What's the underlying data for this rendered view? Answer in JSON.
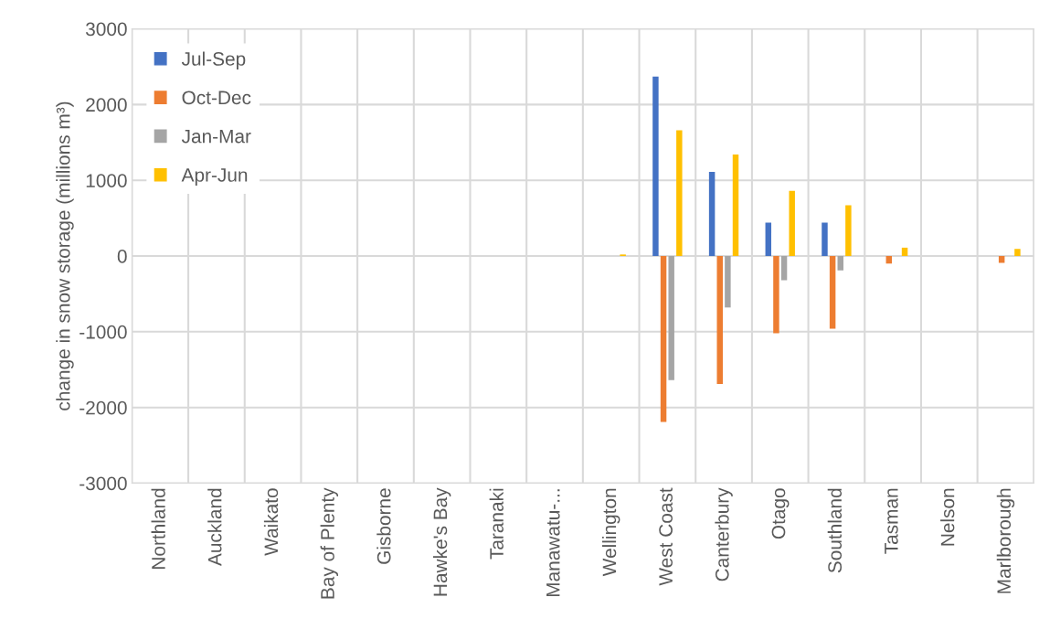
{
  "chart_data": {
    "type": "bar",
    "ylabel": "change in snow storage (millions m³)",
    "categories": [
      "Northland",
      "Auckland",
      "Waikato",
      "Bay of Plenty",
      "Gisborne",
      "Hawke's Bay",
      "Taranaki",
      "Manawatu-...",
      "Wellington",
      "West Coast",
      "Canterbury",
      "Otago",
      "Southland",
      "Tasman",
      "Nelson",
      "Marlborough"
    ],
    "series": [
      {
        "name": "Jul-Sep",
        "color": "#4472c4",
        "values": [
          0,
          0,
          0,
          0,
          0,
          0,
          0,
          0,
          0,
          2370,
          1110,
          440,
          440,
          0,
          0,
          0
        ]
      },
      {
        "name": "Oct-Dec",
        "color": "#ed7d31",
        "values": [
          0,
          0,
          0,
          0,
          0,
          0,
          0,
          0,
          0,
          -2190,
          -1690,
          -1020,
          -960,
          -100,
          0,
          -90
        ]
      },
      {
        "name": "Jan-Mar",
        "color": "#a5a5a5",
        "values": [
          0,
          0,
          0,
          0,
          0,
          0,
          0,
          0,
          0,
          -1640,
          -680,
          -320,
          -190,
          0,
          0,
          0
        ]
      },
      {
        "name": "Apr-Jun",
        "color": "#ffc000",
        "values": [
          0,
          0,
          0,
          0,
          0,
          0,
          0,
          0,
          20,
          1660,
          1340,
          860,
          670,
          110,
          0,
          95
        ]
      }
    ],
    "ylim": [
      -3000,
      3000
    ],
    "yticks": [
      -3000,
      -2000,
      -1000,
      0,
      1000,
      2000,
      3000
    ],
    "grid": true,
    "legend": "top left"
  }
}
